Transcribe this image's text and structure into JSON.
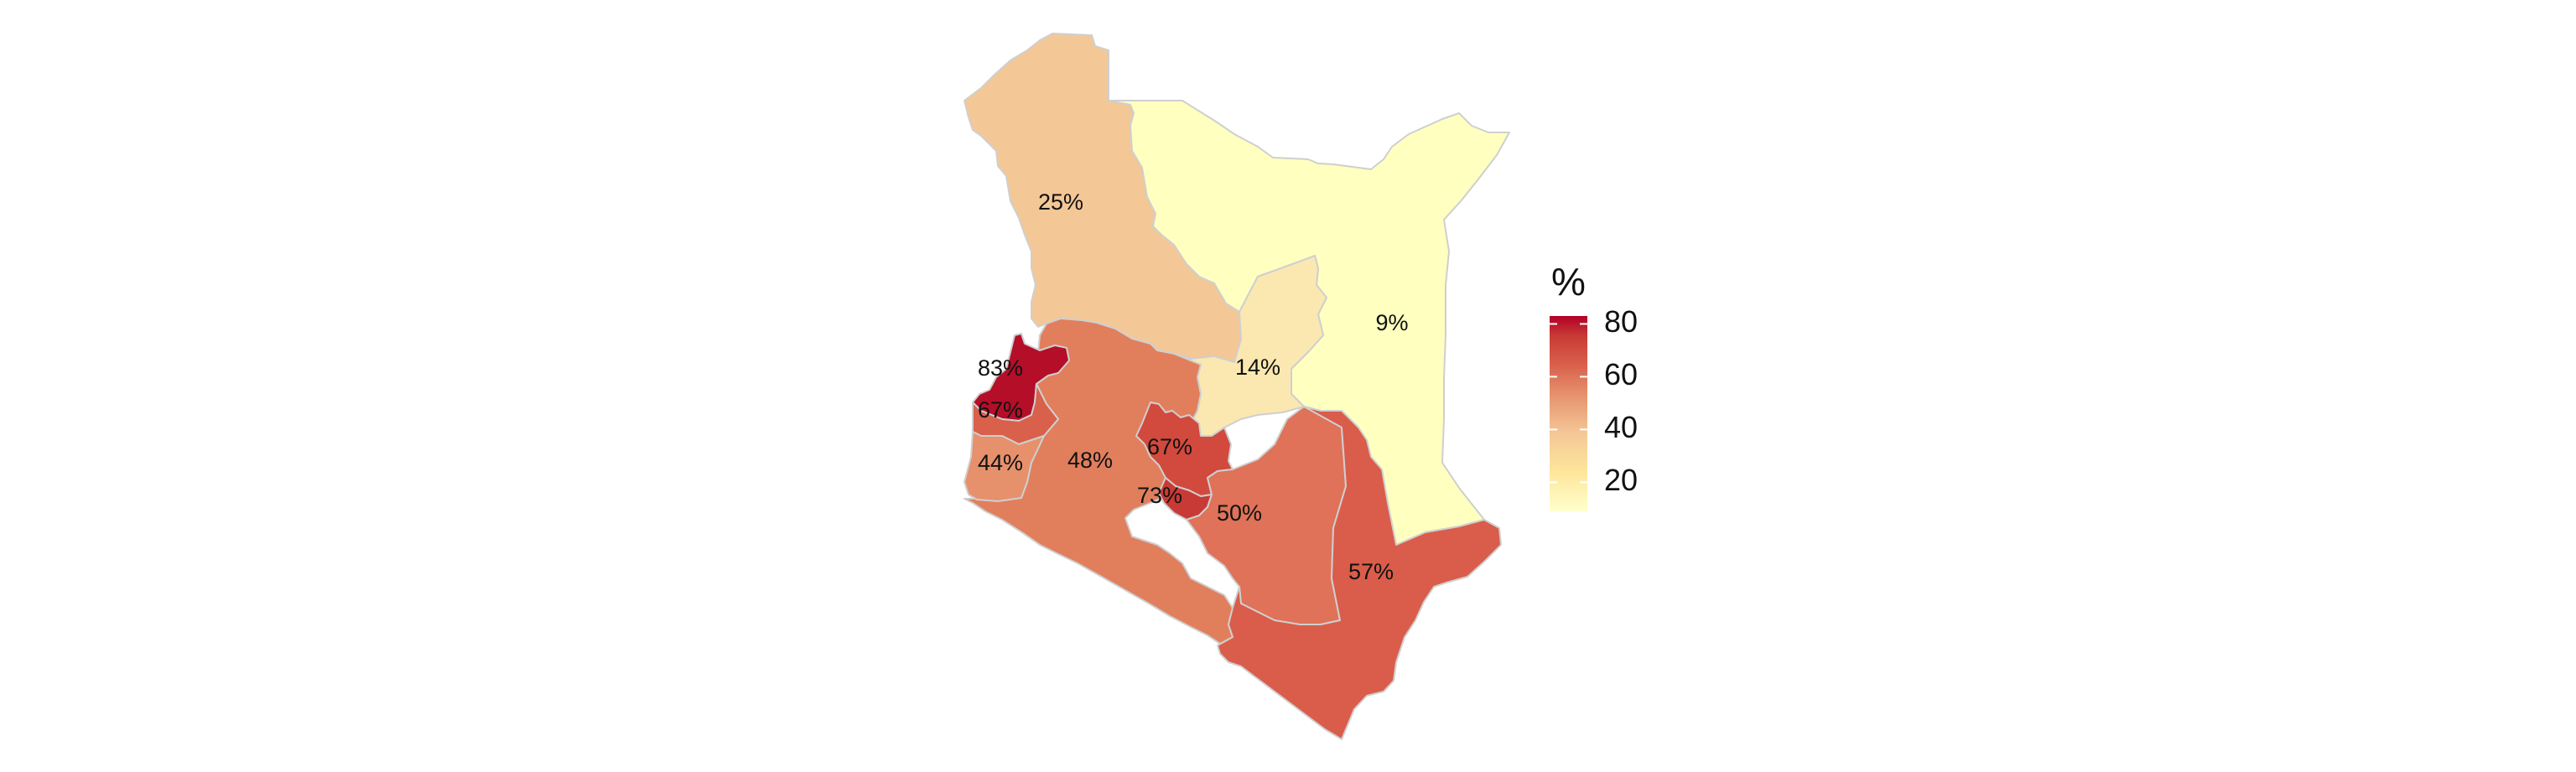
{
  "map": {
    "type": "choropleth",
    "subject": "Kenya regions",
    "regions": [
      {
        "id": "north-west",
        "value": 25,
        "label": "25%",
        "color": "#f4c797"
      },
      {
        "id": "north-east",
        "value": 9,
        "label": "9%",
        "color": "#ffffc0"
      },
      {
        "id": "upper-eastern",
        "value": 14,
        "label": "14%",
        "color": "#fbe8b0"
      },
      {
        "id": "rift-valley",
        "value": 48,
        "label": "48%",
        "color": "#e17f5d"
      },
      {
        "id": "western-west",
        "value": 83,
        "label": "83%",
        "color": "#b40e29"
      },
      {
        "id": "western-south",
        "value": 67,
        "label": "67%",
        "color": "#d9604b"
      },
      {
        "id": "nyanza",
        "value": 44,
        "label": "44%",
        "color": "#e6916c"
      },
      {
        "id": "central",
        "value": 67,
        "label": "67%",
        "color": "#d14a3d"
      },
      {
        "id": "nairobi",
        "value": 73,
        "label": "73%",
        "color": "#c83a35"
      },
      {
        "id": "lower-eastern",
        "value": 50,
        "label": "50%",
        "color": "#df7258"
      },
      {
        "id": "coast",
        "value": 57,
        "label": "57%",
        "color": "#d95d4a"
      }
    ]
  },
  "legend": {
    "title": "%",
    "ticks": [
      {
        "value": 80,
        "label": "80"
      },
      {
        "value": 60,
        "label": "60"
      },
      {
        "value": 40,
        "label": "40"
      },
      {
        "value": 20,
        "label": "20"
      }
    ],
    "range": [
      9,
      83
    ],
    "colors": [
      "#ffffcc",
      "#fee69b",
      "#f4c797",
      "#e6916c",
      "#d9604b",
      "#c83a35",
      "#b10026"
    ]
  }
}
